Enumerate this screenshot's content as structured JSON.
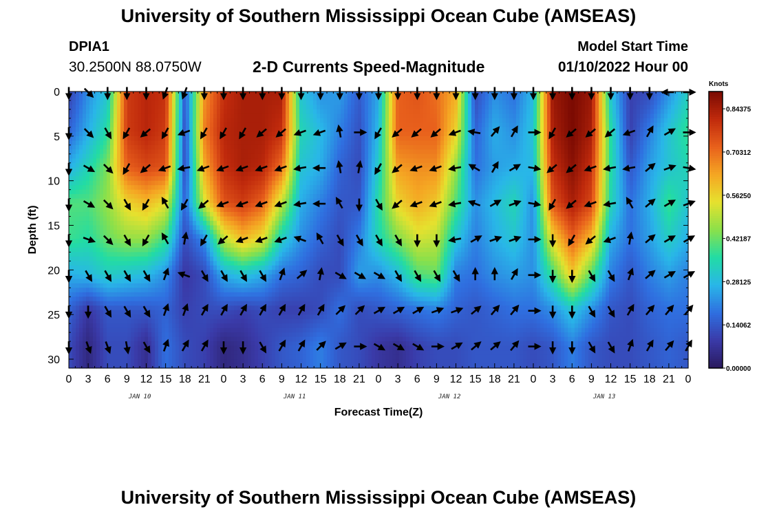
{
  "title": "University of Southern Mississippi Ocean Cube (AMSEAS)",
  "footer_title": "University of Southern Mississippi Ocean Cube (AMSEAS)",
  "header": {
    "station": "DPIA1",
    "coordinates": "30.2500N  88.0750W",
    "subtitle": "2-D Currents Speed-Magnitude",
    "model_start_label": "Model Start Time",
    "model_start_value": "01/10/2022 Hour 00"
  },
  "chart_data": {
    "type": "heatmap",
    "title": "2-D Currents Speed-Magnitude",
    "xlabel": "Forecast Time(Z)",
    "ylabel": "Depth (ft)",
    "x_tick_labels": [
      "0",
      "3",
      "6",
      "9",
      "12",
      "15",
      "18",
      "21",
      "0",
      "3",
      "6",
      "9",
      "12",
      "15",
      "18",
      "21",
      "0",
      "3",
      "6",
      "9",
      "12",
      "15",
      "18",
      "21",
      "0",
      "3",
      "6",
      "9",
      "12",
      "15",
      "18",
      "21",
      "0"
    ],
    "x_range_hours": [
      0,
      96
    ],
    "day_labels": [
      "JAN 10",
      "JAN 11",
      "JAN 12",
      "JAN 13"
    ],
    "y_tick_labels": [
      "0",
      "5",
      "10",
      "15",
      "20",
      "25",
      "30"
    ],
    "ylim": [
      0,
      31
    ],
    "colorbar": {
      "unit": "Knots",
      "tick_labels": [
        "0.84375",
        "0.70312",
        "0.56250",
        "0.42187",
        "0.28125",
        "0.14062",
        "0.00000"
      ],
      "range": [
        0,
        0.9
      ],
      "colors": [
        "#2a1a5e",
        "#3a3aa8",
        "#2f6fe0",
        "#29b6e8",
        "#22dca4",
        "#8be04a",
        "#e6e12e",
        "#f5a623",
        "#e8601c",
        "#c02a0c",
        "#7a0a02"
      ]
    },
    "depth_levels_ft": [
      0,
      4.5,
      8.5,
      12.5,
      16.5,
      20.5,
      24.5,
      28.5
    ],
    "times_hours": [
      0,
      3,
      6,
      9,
      12,
      15,
      18,
      21,
      24,
      27,
      30,
      33,
      36,
      39,
      42,
      45,
      48,
      51,
      54,
      57,
      60,
      63,
      66,
      69,
      72,
      75,
      78,
      81,
      84,
      87,
      90,
      93,
      96
    ],
    "speed_knots_by_depth": [
      [
        0.1,
        0.22,
        0.3,
        0.78,
        0.82,
        0.8,
        0.14,
        0.65,
        0.8,
        0.84,
        0.84,
        0.84,
        0.3,
        0.22,
        0.24,
        0.15,
        0.25,
        0.72,
        0.74,
        0.7,
        0.62,
        0.12,
        0.22,
        0.18,
        0.28,
        0.86,
        0.9,
        0.86,
        0.3,
        0.1,
        0.12,
        0.22,
        0.32
      ],
      [
        0.16,
        0.26,
        0.36,
        0.78,
        0.82,
        0.78,
        0.12,
        0.68,
        0.82,
        0.84,
        0.84,
        0.8,
        0.34,
        0.28,
        0.2,
        0.13,
        0.28,
        0.72,
        0.72,
        0.72,
        0.56,
        0.16,
        0.26,
        0.22,
        0.3,
        0.84,
        0.9,
        0.84,
        0.36,
        0.1,
        0.2,
        0.3,
        0.38
      ],
      [
        0.26,
        0.34,
        0.44,
        0.72,
        0.76,
        0.74,
        0.12,
        0.62,
        0.8,
        0.84,
        0.82,
        0.7,
        0.3,
        0.26,
        0.16,
        0.12,
        0.32,
        0.64,
        0.66,
        0.66,
        0.46,
        0.18,
        0.24,
        0.26,
        0.28,
        0.8,
        0.88,
        0.8,
        0.36,
        0.14,
        0.24,
        0.3,
        0.34
      ],
      [
        0.4,
        0.4,
        0.46,
        0.56,
        0.6,
        0.54,
        0.16,
        0.52,
        0.74,
        0.78,
        0.72,
        0.5,
        0.26,
        0.2,
        0.14,
        0.14,
        0.36,
        0.56,
        0.62,
        0.58,
        0.4,
        0.22,
        0.28,
        0.34,
        0.22,
        0.74,
        0.84,
        0.76,
        0.34,
        0.18,
        0.26,
        0.38,
        0.3
      ],
      [
        0.38,
        0.36,
        0.42,
        0.46,
        0.46,
        0.38,
        0.12,
        0.22,
        0.5,
        0.6,
        0.54,
        0.32,
        0.22,
        0.16,
        0.12,
        0.2,
        0.34,
        0.44,
        0.52,
        0.5,
        0.3,
        0.2,
        0.26,
        0.3,
        0.22,
        0.56,
        0.72,
        0.6,
        0.26,
        0.18,
        0.24,
        0.32,
        0.26
      ],
      [
        0.26,
        0.28,
        0.32,
        0.3,
        0.28,
        0.22,
        0.08,
        0.12,
        0.26,
        0.3,
        0.26,
        0.18,
        0.16,
        0.12,
        0.12,
        0.24,
        0.22,
        0.28,
        0.4,
        0.42,
        0.2,
        0.18,
        0.22,
        0.24,
        0.22,
        0.38,
        0.58,
        0.4,
        0.2,
        0.14,
        0.2,
        0.24,
        0.2
      ],
      [
        0.16,
        0.08,
        0.14,
        0.14,
        0.14,
        0.16,
        0.1,
        0.12,
        0.12,
        0.1,
        0.12,
        0.1,
        0.1,
        0.12,
        0.18,
        0.12,
        0.14,
        0.16,
        0.18,
        0.2,
        0.16,
        0.14,
        0.16,
        0.18,
        0.18,
        0.22,
        0.3,
        0.22,
        0.14,
        0.12,
        0.16,
        0.18,
        0.18
      ],
      [
        0.12,
        0.04,
        0.12,
        0.12,
        0.06,
        0.18,
        0.12,
        0.1,
        0.04,
        0.06,
        0.1,
        0.14,
        0.16,
        0.2,
        0.14,
        0.12,
        0.08,
        0.06,
        0.1,
        0.12,
        0.12,
        0.14,
        0.14,
        0.14,
        0.12,
        0.14,
        0.2,
        0.14,
        0.12,
        0.12,
        0.14,
        0.16,
        0.14
      ]
    ],
    "arrow_direction_deg_by_depth": [
      [
        180,
        135,
        180,
        180,
        180,
        200,
        200,
        180,
        180,
        180,
        180,
        180,
        180,
        180,
        180,
        180,
        180,
        180,
        180,
        180,
        180,
        180,
        180,
        180,
        180,
        180,
        180,
        180,
        180,
        180,
        180,
        270,
        90
      ],
      [
        180,
        135,
        150,
        210,
        230,
        210,
        250,
        210,
        210,
        210,
        230,
        230,
        250,
        250,
        350,
        90,
        210,
        230,
        230,
        230,
        250,
        280,
        40,
        30,
        90,
        210,
        230,
        230,
        230,
        250,
        30,
        60,
        90
      ],
      [
        180,
        120,
        135,
        210,
        230,
        250,
        260,
        250,
        250,
        250,
        250,
        250,
        260,
        270,
        350,
        10,
        210,
        230,
        250,
        250,
        260,
        300,
        30,
        60,
        100,
        230,
        230,
        250,
        260,
        260,
        50,
        70,
        100
      ],
      [
        180,
        120,
        135,
        150,
        210,
        330,
        210,
        230,
        250,
        250,
        250,
        250,
        260,
        270,
        330,
        180,
        150,
        230,
        250,
        250,
        260,
        290,
        60,
        70,
        100,
        210,
        230,
        250,
        260,
        330,
        50,
        60,
        70
      ],
      [
        180,
        110,
        135,
        150,
        210,
        330,
        10,
        210,
        230,
        250,
        250,
        250,
        290,
        330,
        150,
        150,
        150,
        150,
        180,
        180,
        260,
        60,
        70,
        70,
        90,
        180,
        210,
        230,
        250,
        10,
        50,
        60,
        60
      ],
      [
        180,
        150,
        150,
        150,
        150,
        20,
        290,
        150,
        150,
        150,
        150,
        20,
        50,
        10,
        120,
        120,
        120,
        150,
        150,
        150,
        150,
        0,
        0,
        30,
        90,
        180,
        180,
        150,
        150,
        20,
        50,
        60,
        60
      ],
      [
        180,
        180,
        150,
        150,
        150,
        20,
        20,
        30,
        30,
        30,
        30,
        30,
        30,
        30,
        45,
        45,
        60,
        60,
        60,
        70,
        70,
        50,
        40,
        40,
        90,
        180,
        180,
        150,
        150,
        30,
        40,
        40,
        40
      ],
      [
        180,
        160,
        160,
        170,
        150,
        20,
        30,
        30,
        180,
        180,
        150,
        30,
        30,
        45,
        60,
        90,
        120,
        120,
        120,
        90,
        60,
        50,
        50,
        40,
        90,
        180,
        180,
        150,
        150,
        20,
        30,
        40,
        30
      ]
    ]
  }
}
